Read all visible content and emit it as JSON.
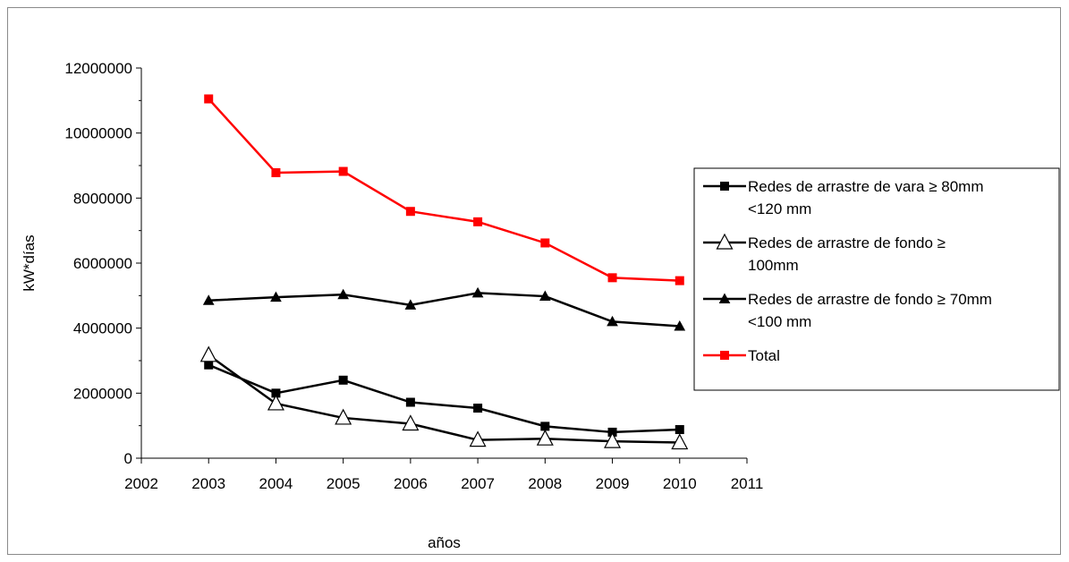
{
  "chart_data": {
    "type": "line",
    "title": "",
    "xlabel": "años",
    "ylabel": "kW*días",
    "xlim": [
      2002,
      2011
    ],
    "ylim": [
      0,
      12000000
    ],
    "x_ticks": [
      "2002",
      "2003",
      "2004",
      "2005",
      "2006",
      "2007",
      "2008",
      "2009",
      "2010",
      "2011"
    ],
    "y_ticks": [
      "0",
      "2000000",
      "4000000",
      "6000000",
      "8000000",
      "10000000",
      "12000000"
    ],
    "x": [
      2003,
      2004,
      2005,
      2006,
      2007,
      2008,
      2009,
      2010
    ],
    "grid": false,
    "legend_position": "right",
    "series": [
      {
        "name_lines": [
          "Redes de arrastre de vara  ≥ 80mm",
          "<120 mm"
        ],
        "marker": "square",
        "color": "#000000",
        "values": [
          2870000,
          2000000,
          2400000,
          1720000,
          1540000,
          980000,
          800000,
          880000
        ]
      },
      {
        "name_lines": [
          "Redes de arrastre de fondo ≥",
          "100mm"
        ],
        "marker": "open-triangle",
        "color": "#000000",
        "values": [
          3170000,
          1680000,
          1240000,
          1060000,
          560000,
          600000,
          520000,
          480000
        ]
      },
      {
        "name_lines": [
          "Redes de arrastre de fondo ≥ 70mm",
          "<100 mm"
        ],
        "marker": "triangle",
        "color": "#000000",
        "values": [
          4850000,
          4950000,
          5030000,
          4710000,
          5080000,
          4980000,
          4200000,
          4060000
        ]
      },
      {
        "name_lines": [
          "Total"
        ],
        "marker": "square",
        "color": "#ff0000",
        "values": [
          11050000,
          8780000,
          8820000,
          7590000,
          7270000,
          6620000,
          5550000,
          5460000
        ]
      }
    ]
  }
}
